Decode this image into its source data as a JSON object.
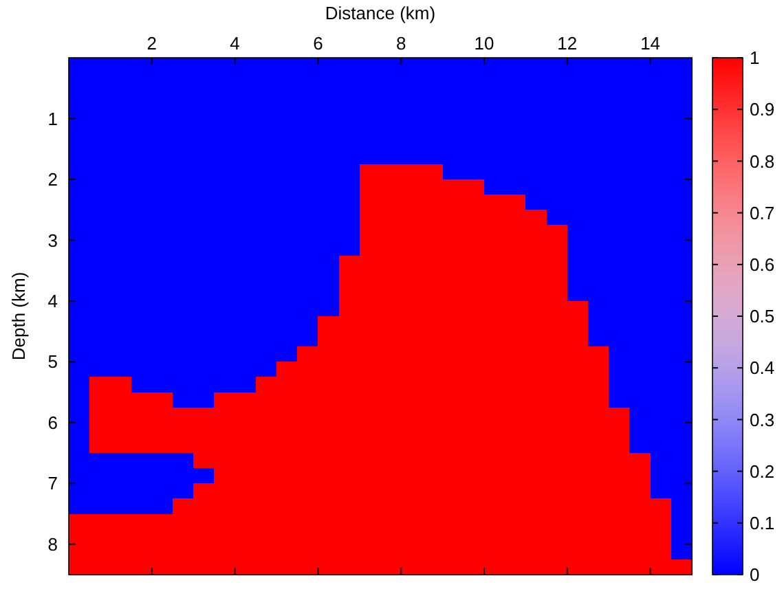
{
  "chart_data": {
    "type": "heatmap",
    "xlabel": "Distance (km)",
    "ylabel": "Depth (km)",
    "xlim": [
      0,
      15
    ],
    "ylim": [
      8.5,
      0
    ],
    "xticks": [
      2,
      4,
      6,
      8,
      10,
      12,
      14
    ],
    "yticks": [
      1,
      2,
      3,
      4,
      5,
      6,
      7,
      8
    ],
    "clim": [
      0,
      1
    ],
    "cticks": [
      0,
      0.1,
      0.2,
      0.3,
      0.4,
      0.5,
      0.6,
      0.7,
      0.8,
      0.9,
      1
    ],
    "cells": [
      [
        0,
        0,
        0,
        0,
        0,
        0,
        0,
        0,
        0,
        0,
        0,
        0,
        0,
        0,
        0,
        0,
        0,
        0,
        0,
        0,
        0,
        0,
        0,
        0,
        0,
        0,
        0,
        0,
        0,
        0
      ],
      [
        0,
        0,
        0,
        0,
        0,
        0,
        0,
        0,
        0,
        0,
        0,
        0,
        0,
        0,
        0,
        0,
        0,
        0,
        0,
        0,
        0,
        0,
        0,
        0,
        0,
        0,
        0,
        0,
        0,
        0
      ],
      [
        0,
        0,
        0,
        0,
        0,
        0,
        0,
        0,
        0,
        0,
        0,
        0,
        0,
        0,
        0,
        0,
        0,
        0,
        0,
        0,
        0,
        0,
        0,
        0,
        0,
        0,
        0,
        0,
        0,
        0
      ],
      [
        0,
        0,
        0,
        0,
        0,
        0,
        0,
        0,
        0,
        0,
        0,
        0,
        0,
        0,
        0,
        0,
        0,
        0,
        0,
        0,
        0,
        0,
        0,
        0,
        0,
        0,
        0,
        0,
        0,
        0
      ],
      [
        0,
        0,
        0,
        0,
        0,
        0,
        0,
        0,
        0,
        0,
        0,
        0,
        0,
        0,
        0,
        0,
        0,
        0,
        0,
        0,
        0,
        0,
        0,
        0,
        0,
        0,
        0,
        0,
        0,
        0
      ],
      [
        0,
        0,
        0,
        0,
        0,
        0,
        0,
        0,
        0,
        0,
        0,
        0,
        0,
        0,
        0,
        0,
        0,
        0,
        0,
        0,
        0,
        0,
        0,
        0,
        0,
        0,
        0,
        0,
        0,
        0
      ],
      [
        0,
        0,
        0,
        0,
        0,
        0,
        0,
        0,
        0,
        0,
        0,
        0,
        0,
        0,
        0,
        0,
        0,
        0,
        0,
        0,
        0,
        0,
        0,
        0,
        0,
        0,
        0,
        0,
        0,
        0
      ],
      [
        0,
        0,
        0,
        0,
        0,
        0,
        0,
        0,
        0,
        0,
        0,
        0,
        0,
        0,
        1,
        1,
        1,
        1,
        0,
        0,
        0,
        0,
        0,
        0,
        0,
        0,
        0,
        0,
        0,
        0
      ],
      [
        0,
        0,
        0,
        0,
        0,
        0,
        0,
        0,
        0,
        0,
        0,
        0,
        0,
        0,
        1,
        1,
        1,
        1,
        1,
        1,
        0,
        0,
        0,
        0,
        0,
        0,
        0,
        0,
        0,
        0
      ],
      [
        0,
        0,
        0,
        0,
        0,
        0,
        0,
        0,
        0,
        0,
        0,
        0,
        0,
        0,
        1,
        1,
        1,
        1,
        1,
        1,
        1,
        1,
        0,
        0,
        0,
        0,
        0,
        0,
        0,
        0
      ],
      [
        0,
        0,
        0,
        0,
        0,
        0,
        0,
        0,
        0,
        0,
        0,
        0,
        0,
        0,
        1,
        1,
        1,
        1,
        1,
        1,
        1,
        1,
        1,
        0,
        0,
        0,
        0,
        0,
        0,
        0
      ],
      [
        0,
        0,
        0,
        0,
        0,
        0,
        0,
        0,
        0,
        0,
        0,
        0,
        0,
        0,
        1,
        1,
        1,
        1,
        1,
        1,
        1,
        1,
        1,
        1,
        0,
        0,
        0,
        0,
        0,
        0
      ],
      [
        0,
        0,
        0,
        0,
        0,
        0,
        0,
        0,
        0,
        0,
        0,
        0,
        0,
        0,
        1,
        1,
        1,
        1,
        1,
        1,
        1,
        1,
        1,
        1,
        0,
        0,
        0,
        0,
        0,
        0
      ],
      [
        0,
        0,
        0,
        0,
        0,
        0,
        0,
        0,
        0,
        0,
        0,
        0,
        0,
        1,
        1,
        1,
        1,
        1,
        1,
        1,
        1,
        1,
        1,
        1,
        0,
        0,
        0,
        0,
        0,
        0
      ],
      [
        0,
        0,
        0,
        0,
        0,
        0,
        0,
        0,
        0,
        0,
        0,
        0,
        0,
        1,
        1,
        1,
        1,
        1,
        1,
        1,
        1,
        1,
        1,
        1,
        0,
        0,
        0,
        0,
        0,
        0
      ],
      [
        0,
        0,
        0,
        0,
        0,
        0,
        0,
        0,
        0,
        0,
        0,
        0,
        0,
        1,
        1,
        1,
        1,
        1,
        1,
        1,
        1,
        1,
        1,
        1,
        0,
        0,
        0,
        0,
        0,
        0
      ],
      [
        0,
        0,
        0,
        0,
        0,
        0,
        0,
        0,
        0,
        0,
        0,
        0,
        0,
        1,
        1,
        1,
        1,
        1,
        1,
        1,
        1,
        1,
        1,
        1,
        1,
        0,
        0,
        0,
        0,
        0
      ],
      [
        0,
        0,
        0,
        0,
        0,
        0,
        0,
        0,
        0,
        0,
        0,
        0,
        1,
        1,
        1,
        1,
        1,
        1,
        1,
        1,
        1,
        1,
        1,
        1,
        1,
        0,
        0,
        0,
        0,
        0
      ],
      [
        0,
        0,
        0,
        0,
        0,
        0,
        0,
        0,
        0,
        0,
        0,
        0,
        1,
        1,
        1,
        1,
        1,
        1,
        1,
        1,
        1,
        1,
        1,
        1,
        1,
        0,
        0,
        0,
        0,
        0
      ],
      [
        0,
        0,
        0,
        0,
        0,
        0,
        0,
        0,
        0,
        0,
        0,
        1,
        1,
        1,
        1,
        1,
        1,
        1,
        1,
        1,
        1,
        1,
        1,
        1,
        1,
        1,
        0,
        0,
        0,
        0
      ],
      [
        0,
        0,
        0,
        0,
        0,
        0,
        0,
        0,
        0,
        0,
        1,
        1,
        1,
        1,
        1,
        1,
        1,
        1,
        1,
        1,
        1,
        1,
        1,
        1,
        1,
        1,
        0,
        0,
        0,
        0
      ],
      [
        0,
        1,
        1,
        0,
        0,
        0,
        0,
        0,
        0,
        1,
        1,
        1,
        1,
        1,
        1,
        1,
        1,
        1,
        1,
        1,
        1,
        1,
        1,
        1,
        1,
        1,
        0,
        0,
        0,
        0
      ],
      [
        0,
        1,
        1,
        1,
        1,
        0,
        0,
        1,
        1,
        1,
        1,
        1,
        1,
        1,
        1,
        1,
        1,
        1,
        1,
        1,
        1,
        1,
        1,
        1,
        1,
        1,
        0,
        0,
        0,
        0
      ],
      [
        0,
        1,
        1,
        1,
        1,
        1,
        1,
        1,
        1,
        1,
        1,
        1,
        1,
        1,
        1,
        1,
        1,
        1,
        1,
        1,
        1,
        1,
        1,
        1,
        1,
        1,
        1,
        0,
        0,
        0
      ],
      [
        0,
        1,
        1,
        1,
        1,
        1,
        1,
        1,
        1,
        1,
        1,
        1,
        1,
        1,
        1,
        1,
        1,
        1,
        1,
        1,
        1,
        1,
        1,
        1,
        1,
        1,
        1,
        0,
        0,
        0
      ],
      [
        0,
        1,
        1,
        1,
        1,
        1,
        1,
        1,
        1,
        1,
        1,
        1,
        1,
        1,
        1,
        1,
        1,
        1,
        1,
        1,
        1,
        1,
        1,
        1,
        1,
        1,
        1,
        0,
        0,
        0
      ],
      [
        0,
        0,
        0,
        0,
        0,
        0,
        1,
        1,
        1,
        1,
        1,
        1,
        1,
        1,
        1,
        1,
        1,
        1,
        1,
        1,
        1,
        1,
        1,
        1,
        1,
        1,
        1,
        1,
        0,
        0
      ],
      [
        0,
        0,
        0,
        0,
        0,
        0,
        0,
        1,
        1,
        1,
        1,
        1,
        1,
        1,
        1,
        1,
        1,
        1,
        1,
        1,
        1,
        1,
        1,
        1,
        1,
        1,
        1,
        1,
        0,
        0
      ],
      [
        0,
        0,
        0,
        0,
        0,
        0,
        1,
        1,
        1,
        1,
        1,
        1,
        1,
        1,
        1,
        1,
        1,
        1,
        1,
        1,
        1,
        1,
        1,
        1,
        1,
        1,
        1,
        1,
        0,
        0
      ],
      [
        0,
        0,
        0,
        0,
        0,
        1,
        1,
        1,
        1,
        1,
        1,
        1,
        1,
        1,
        1,
        1,
        1,
        1,
        1,
        1,
        1,
        1,
        1,
        1,
        1,
        1,
        1,
        1,
        1,
        0
      ],
      [
        1,
        1,
        1,
        1,
        1,
        1,
        1,
        1,
        1,
        1,
        1,
        1,
        1,
        1,
        1,
        1,
        1,
        1,
        1,
        1,
        1,
        1,
        1,
        1,
        1,
        1,
        1,
        1,
        1,
        0
      ],
      [
        1,
        1,
        1,
        1,
        1,
        1,
        1,
        1,
        1,
        1,
        1,
        1,
        1,
        1,
        1,
        1,
        1,
        1,
        1,
        1,
        1,
        1,
        1,
        1,
        1,
        1,
        1,
        1,
        1,
        0
      ],
      [
        1,
        1,
        1,
        1,
        1,
        1,
        1,
        1,
        1,
        1,
        1,
        1,
        1,
        1,
        1,
        1,
        1,
        1,
        1,
        1,
        1,
        1,
        1,
        1,
        1,
        1,
        1,
        1,
        1,
        0
      ],
      [
        1,
        1,
        1,
        1,
        1,
        1,
        1,
        1,
        1,
        1,
        1,
        1,
        1,
        1,
        1,
        1,
        1,
        1,
        1,
        1,
        1,
        1,
        1,
        1,
        1,
        1,
        1,
        1,
        1,
        1
      ]
    ]
  }
}
